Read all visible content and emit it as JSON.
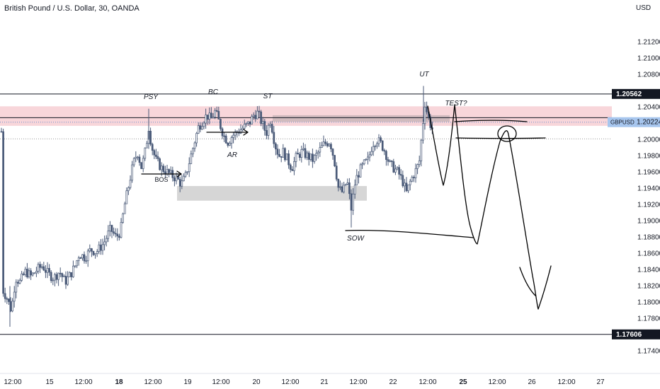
{
  "header": {
    "title": "British Pound / U.S. Dollar, 30, OANDA"
  },
  "chart_data": {
    "type": "candlestick",
    "currency": "USD",
    "symbol": "GBPUSD",
    "ylim": [
      1.173,
      1.2163
    ],
    "y_ticks": [
      "1.21200",
      "1.21000",
      "1.20800",
      "1.20400",
      "1.20000",
      "1.19800",
      "1.19600",
      "1.19400",
      "1.19200",
      "1.19000",
      "1.18800",
      "1.18600",
      "1.18400",
      "1.18200",
      "1.18000",
      "1.17800",
      "1.17400"
    ],
    "x_ticks": [
      {
        "label": "12:00",
        "bold": false
      },
      {
        "label": "15",
        "bold": false
      },
      {
        "label": "12:00",
        "bold": false
      },
      {
        "label": "18",
        "bold": true
      },
      {
        "label": "12:00",
        "bold": false
      },
      {
        "label": "19",
        "bold": false
      },
      {
        "label": "12:00",
        "bold": false
      },
      {
        "label": "20",
        "bold": false
      },
      {
        "label": "12:00",
        "bold": false
      },
      {
        "label": "21",
        "bold": false
      },
      {
        "label": "12:00",
        "bold": false
      },
      {
        "label": "22",
        "bold": false
      },
      {
        "label": "12:00",
        "bold": false
      },
      {
        "label": "25",
        "bold": true
      },
      {
        "label": "12:00",
        "bold": false
      },
      {
        "label": "26",
        "bold": false
      },
      {
        "label": "12:00",
        "bold": false
      },
      {
        "label": "27",
        "bold": false
      }
    ],
    "price_labels": {
      "top_level": {
        "value": 1.20562,
        "text": "1.20562"
      },
      "bottom_level": {
        "value": 1.17606,
        "text": "1.17606"
      },
      "current": {
        "value": 1.20224,
        "text": "1.20224",
        "symbol": "GBPUSD"
      }
    },
    "annotations": [
      "PSY",
      "BC",
      "ST",
      "AR",
      "BOS",
      "SOW",
      "UT",
      "TEST?"
    ],
    "colors": {
      "candle": "#4a5a78",
      "resistance_zone": "#f7cfd3",
      "gray_zone": "#cfcfcf",
      "level_line": "#131722",
      "current_badge": "#a7c6ee"
    }
  }
}
